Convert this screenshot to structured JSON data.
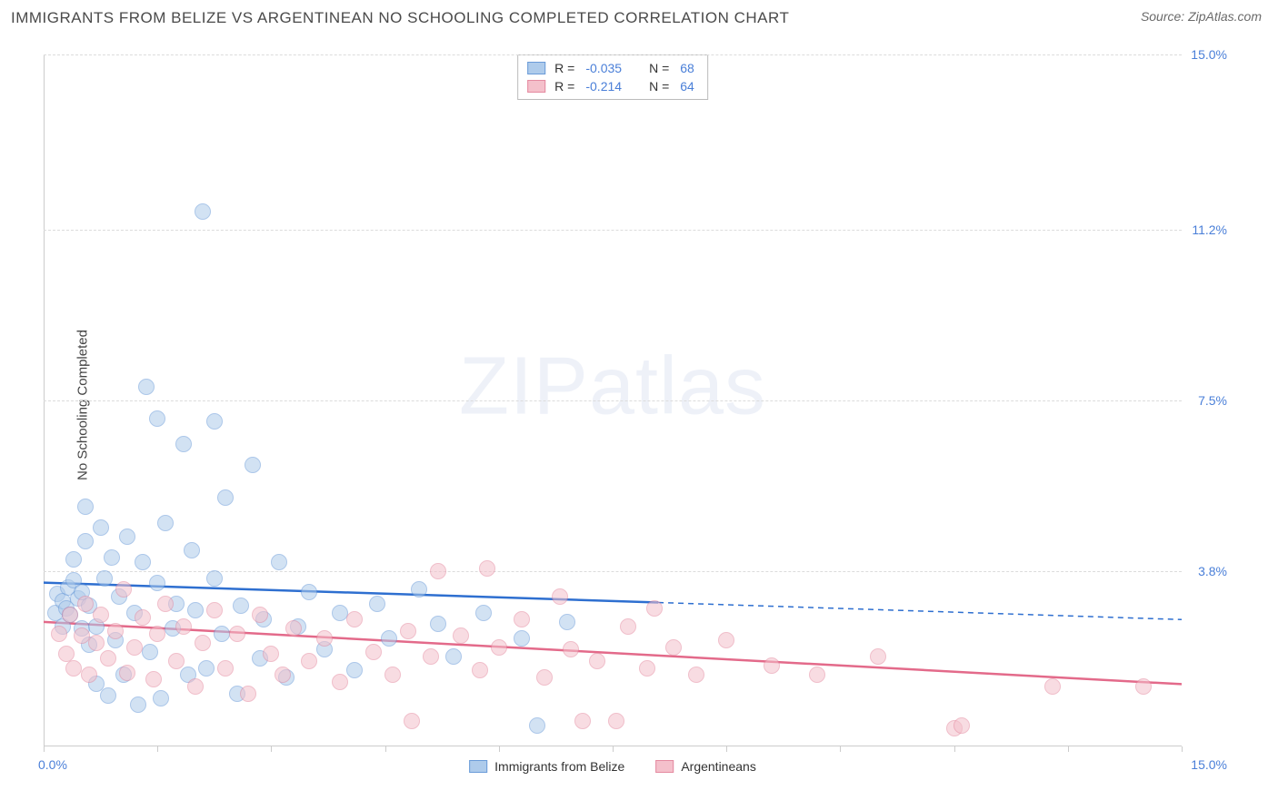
{
  "header": {
    "title": "IMMIGRANTS FROM BELIZE VS ARGENTINEAN NO SCHOOLING COMPLETED CORRELATION CHART",
    "source": "Source: ZipAtlas.com"
  },
  "watermark": {
    "zip": "ZIP",
    "atlas": "atlas"
  },
  "chart": {
    "type": "scatter",
    "ylabel": "No Schooling Completed",
    "background_color": "#ffffff",
    "grid_color": "#dcdcdc",
    "axis_text_color": "#4a7fd8",
    "xlim": [
      0,
      15
    ],
    "ylim": [
      0,
      15
    ],
    "yticks": [
      {
        "value": 3.8,
        "label": "3.8%"
      },
      {
        "value": 7.5,
        "label": "7.5%"
      },
      {
        "value": 11.2,
        "label": "11.2%"
      },
      {
        "value": 15.0,
        "label": "15.0%"
      }
    ],
    "xticks": [
      0,
      1.5,
      3,
      4.5,
      6,
      7.5,
      9,
      10.5,
      12,
      13.5,
      15
    ],
    "x_min_label": "0.0%",
    "x_max_label": "15.0%",
    "marker_radius": 9,
    "marker_opacity": 0.55,
    "series": [
      {
        "id": "belize",
        "label": "Immigrants from Belize",
        "fill_color": "#aecbeb",
        "stroke_color": "#6a9bd8",
        "line_color": "#2e6fd0",
        "R": "-0.035",
        "N": "68",
        "trend": {
          "x1": 0,
          "y1": 3.55,
          "x2": 8.1,
          "y2": 3.12,
          "ext_x2": 15,
          "ext_y2": 2.75
        },
        "points": [
          [
            0.15,
            2.9
          ],
          [
            0.18,
            3.3
          ],
          [
            0.25,
            2.6
          ],
          [
            0.25,
            3.15
          ],
          [
            0.3,
            3.0
          ],
          [
            0.32,
            3.45
          ],
          [
            0.35,
            2.85
          ],
          [
            0.4,
            3.6
          ],
          [
            0.4,
            4.05
          ],
          [
            0.45,
            3.2
          ],
          [
            0.5,
            2.55
          ],
          [
            0.5,
            3.35
          ],
          [
            0.55,
            4.45
          ],
          [
            0.55,
            5.2
          ],
          [
            0.6,
            2.2
          ],
          [
            0.6,
            3.05
          ],
          [
            0.7,
            1.35
          ],
          [
            0.7,
            2.6
          ],
          [
            0.75,
            4.75
          ],
          [
            0.8,
            3.65
          ],
          [
            0.85,
            1.1
          ],
          [
            0.9,
            4.1
          ],
          [
            0.95,
            2.3
          ],
          [
            1.0,
            3.25
          ],
          [
            1.05,
            1.55
          ],
          [
            1.1,
            4.55
          ],
          [
            1.2,
            2.9
          ],
          [
            1.25,
            0.9
          ],
          [
            1.3,
            4.0
          ],
          [
            1.35,
            7.8
          ],
          [
            1.4,
            2.05
          ],
          [
            1.5,
            3.55
          ],
          [
            1.5,
            7.1
          ],
          [
            1.55,
            1.05
          ],
          [
            1.6,
            4.85
          ],
          [
            1.7,
            2.55
          ],
          [
            1.75,
            3.1
          ],
          [
            1.85,
            6.55
          ],
          [
            1.9,
            1.55
          ],
          [
            1.95,
            4.25
          ],
          [
            2.0,
            2.95
          ],
          [
            2.1,
            11.6
          ],
          [
            2.15,
            1.7
          ],
          [
            2.25,
            3.65
          ],
          [
            2.25,
            7.05
          ],
          [
            2.35,
            2.45
          ],
          [
            2.4,
            5.4
          ],
          [
            2.55,
            1.15
          ],
          [
            2.6,
            3.05
          ],
          [
            2.75,
            6.1
          ],
          [
            2.85,
            1.9
          ],
          [
            2.9,
            2.75
          ],
          [
            3.1,
            4.0
          ],
          [
            3.2,
            1.5
          ],
          [
            3.35,
            2.6
          ],
          [
            3.5,
            3.35
          ],
          [
            3.7,
            2.1
          ],
          [
            3.9,
            2.9
          ],
          [
            4.1,
            1.65
          ],
          [
            4.4,
            3.1
          ],
          [
            4.55,
            2.35
          ],
          [
            4.95,
            3.4
          ],
          [
            5.2,
            2.65
          ],
          [
            5.4,
            1.95
          ],
          [
            5.8,
            2.9
          ],
          [
            6.3,
            2.35
          ],
          [
            6.5,
            0.45
          ],
          [
            6.9,
            2.7
          ]
        ]
      },
      {
        "id": "argentina",
        "label": "Argentineans",
        "fill_color": "#f4c0cb",
        "stroke_color": "#e48aa0",
        "line_color": "#e36a8a",
        "R": "-0.214",
        "N": "64",
        "trend": {
          "x1": 0,
          "y1": 2.7,
          "x2": 15,
          "y2": 1.35,
          "ext_x2": 15,
          "ext_y2": 1.35
        },
        "points": [
          [
            0.2,
            2.45
          ],
          [
            0.3,
            2.0
          ],
          [
            0.35,
            2.85
          ],
          [
            0.4,
            1.7
          ],
          [
            0.5,
            2.4
          ],
          [
            0.55,
            3.1
          ],
          [
            0.6,
            1.55
          ],
          [
            0.7,
            2.25
          ],
          [
            0.75,
            2.85
          ],
          [
            0.85,
            1.9
          ],
          [
            0.95,
            2.5
          ],
          [
            1.05,
            3.4
          ],
          [
            1.1,
            1.6
          ],
          [
            1.2,
            2.15
          ],
          [
            1.3,
            2.8
          ],
          [
            1.45,
            1.45
          ],
          [
            1.5,
            2.45
          ],
          [
            1.6,
            3.1
          ],
          [
            1.75,
            1.85
          ],
          [
            1.85,
            2.6
          ],
          [
            2.0,
            1.3
          ],
          [
            2.1,
            2.25
          ],
          [
            2.25,
            2.95
          ],
          [
            2.4,
            1.7
          ],
          [
            2.55,
            2.45
          ],
          [
            2.7,
            1.15
          ],
          [
            2.85,
            2.85
          ],
          [
            3.0,
            2.0
          ],
          [
            3.15,
            1.55
          ],
          [
            3.3,
            2.55
          ],
          [
            3.5,
            1.85
          ],
          [
            3.7,
            2.35
          ],
          [
            3.9,
            1.4
          ],
          [
            4.1,
            2.75
          ],
          [
            4.35,
            2.05
          ],
          [
            4.6,
            1.55
          ],
          [
            4.8,
            2.5
          ],
          [
            4.85,
            0.55
          ],
          [
            5.1,
            1.95
          ],
          [
            5.2,
            3.8
          ],
          [
            5.5,
            2.4
          ],
          [
            5.75,
            1.65
          ],
          [
            5.85,
            3.85
          ],
          [
            6.0,
            2.15
          ],
          [
            6.3,
            2.75
          ],
          [
            6.6,
            1.5
          ],
          [
            6.8,
            3.25
          ],
          [
            6.95,
            2.1
          ],
          [
            7.1,
            0.55
          ],
          [
            7.3,
            1.85
          ],
          [
            7.55,
            0.55
          ],
          [
            7.7,
            2.6
          ],
          [
            7.95,
            1.7
          ],
          [
            8.05,
            3.0
          ],
          [
            8.3,
            2.15
          ],
          [
            8.6,
            1.55
          ],
          [
            9.0,
            2.3
          ],
          [
            9.6,
            1.75
          ],
          [
            10.2,
            1.55
          ],
          [
            11.0,
            1.95
          ],
          [
            12.0,
            0.4
          ],
          [
            12.1,
            0.45
          ],
          [
            13.3,
            1.3
          ],
          [
            14.5,
            1.3
          ]
        ]
      }
    ],
    "legend_top": {
      "R_label": "R =",
      "N_label": "N ="
    }
  }
}
